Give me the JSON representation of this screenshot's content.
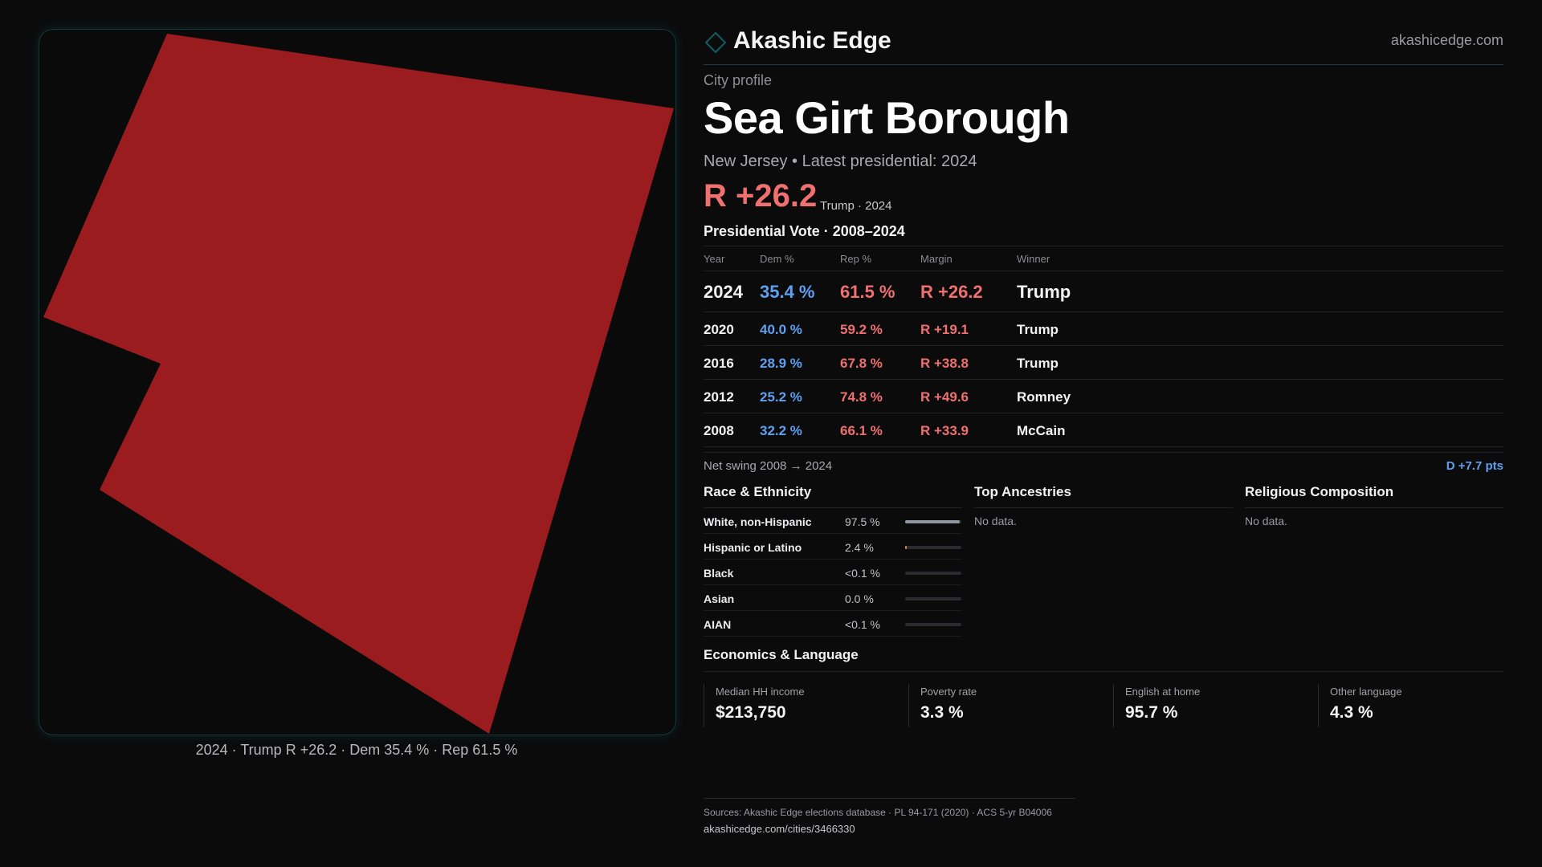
{
  "map": {
    "fill_color": "#9b1c1f",
    "caption": "2024 · Trump  R +26.2 · Dem 35.4 % · Rep 61.5 %"
  },
  "brand": {
    "name": "Akashic Edge",
    "url": "akashicedge.com",
    "logo_icon": "diamond-icon",
    "accent": "#0f5e63"
  },
  "header": {
    "kicker": "City profile",
    "title": "Sea Girt Borough",
    "subtitle": "New Jersey • Latest presidential: 2024",
    "margin": "R +26.2",
    "margin_note": "Trump · 2024"
  },
  "vote": {
    "title": "Presidential Vote · 2008–2024",
    "columns": [
      "Year",
      "Dem %",
      "Rep %",
      "Margin",
      "Winner"
    ],
    "rows": [
      {
        "year": "2024",
        "dem": "35.4 %",
        "rep": "61.5 %",
        "margin": "R +26.2",
        "winner": "Trump"
      },
      {
        "year": "2020",
        "dem": "40.0 %",
        "rep": "59.2 %",
        "margin": "R +19.1",
        "winner": "Trump"
      },
      {
        "year": "2016",
        "dem": "28.9 %",
        "rep": "67.8 %",
        "margin": "R +38.8",
        "winner": "Trump"
      },
      {
        "year": "2012",
        "dem": "25.2 %",
        "rep": "74.8 %",
        "margin": "R +49.6",
        "winner": "Romney"
      },
      {
        "year": "2008",
        "dem": "32.2 %",
        "rep": "66.1 %",
        "margin": "R +33.9",
        "winner": "McCain"
      }
    ],
    "swing_label": "Net swing 2008 → 2024",
    "swing_value": "D +7.7 pts"
  },
  "race": {
    "title": "Race & Ethnicity",
    "rows": [
      {
        "name": "White, non-Hispanic",
        "pct": "97.5 %",
        "fraction": 0.975,
        "color": "#8f96a3"
      },
      {
        "name": "Hispanic or Latino",
        "pct": "2.4 %",
        "fraction": 0.024,
        "color": "#e08a2c"
      },
      {
        "name": "Black",
        "pct": "<0.1 %",
        "fraction": 0.0,
        "color": "#8f96a3"
      },
      {
        "name": "Asian",
        "pct": "0.0 %",
        "fraction": 0.0,
        "color": "#8f96a3"
      },
      {
        "name": "AIAN",
        "pct": "<0.1 %",
        "fraction": 0.0,
        "color": "#8f96a3"
      }
    ]
  },
  "ancestries": {
    "title": "Top Ancestries",
    "empty": "No data."
  },
  "religion": {
    "title": "Religious Composition",
    "empty": "No data."
  },
  "economics": {
    "title": "Economics & Language",
    "stats": [
      {
        "label": "Median HH income",
        "value": "$213,750"
      },
      {
        "label": "Poverty rate",
        "value": "3.3 %"
      },
      {
        "label": "English at home",
        "value": "95.7 %"
      },
      {
        "label": "Other language",
        "value": "4.3 %"
      }
    ]
  },
  "footer": {
    "sources": "Sources: Akashic Edge elections database · PL 94-171 (2020) · ACS 5-yr B04006",
    "url": "akashicedge.com/cities/3466330"
  }
}
